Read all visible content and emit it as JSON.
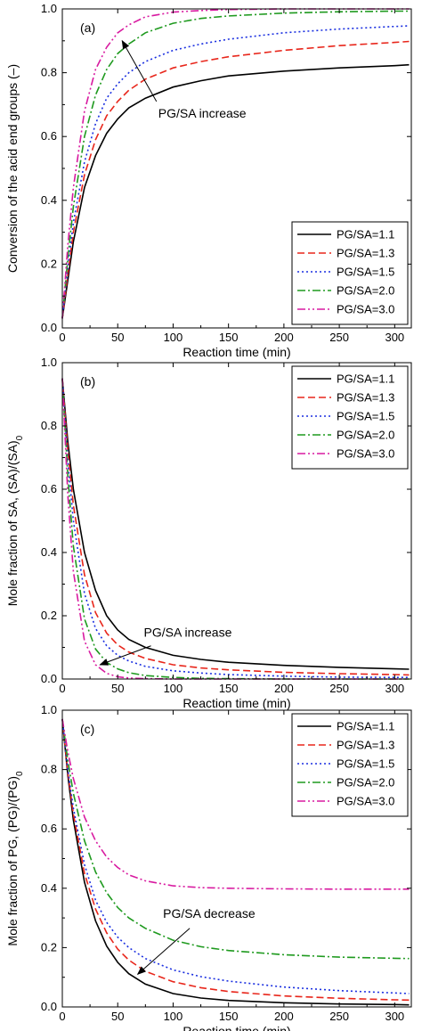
{
  "chart_data": [
    {
      "type": "line",
      "panel": "(a)",
      "xlabel": "Reaction time (min)",
      "ylabel": "Conversion of the acid end groups (–)",
      "xlim": [
        0,
        315
      ],
      "ylim": [
        0,
        1.0
      ],
      "xticks": [
        "0",
        "50",
        "100",
        "150",
        "200",
        "250",
        "300"
      ],
      "yticks": [
        "0.0",
        "0.2",
        "0.4",
        "0.6",
        "0.8",
        "1.0"
      ],
      "grid": false,
      "legend_position": "bottom-right",
      "annotation": {
        "text": "PG/SA increase",
        "arrow_from": [
          85,
          0.71
        ],
        "arrow_to": [
          54,
          0.9
        ]
      },
      "series": [
        {
          "name": "PG/SA=1.1",
          "color": "#000000",
          "dash": "solid",
          "x": [
            0,
            5,
            10,
            20,
            30,
            40,
            50,
            60,
            75,
            100,
            125,
            150,
            200,
            250,
            300,
            313
          ],
          "y": [
            0.03,
            0.15,
            0.27,
            0.44,
            0.54,
            0.61,
            0.655,
            0.69,
            0.72,
            0.755,
            0.775,
            0.79,
            0.805,
            0.815,
            0.822,
            0.825
          ]
        },
        {
          "name": "PG/SA=1.3",
          "color": "#e8261b",
          "dash": "dashed",
          "x": [
            0,
            5,
            10,
            20,
            30,
            40,
            50,
            60,
            75,
            100,
            125,
            150,
            200,
            250,
            300,
            313
          ],
          "y": [
            0.03,
            0.17,
            0.3,
            0.48,
            0.59,
            0.665,
            0.71,
            0.745,
            0.78,
            0.815,
            0.835,
            0.85,
            0.87,
            0.885,
            0.895,
            0.898
          ]
        },
        {
          "name": "PG/SA=1.5",
          "color": "#1a2fe0",
          "dash": "dotted",
          "x": [
            0,
            5,
            10,
            20,
            30,
            40,
            50,
            60,
            75,
            100,
            125,
            150,
            200,
            250,
            300,
            313
          ],
          "y": [
            0.03,
            0.19,
            0.33,
            0.52,
            0.64,
            0.72,
            0.765,
            0.8,
            0.835,
            0.87,
            0.89,
            0.905,
            0.925,
            0.937,
            0.945,
            0.947
          ]
        },
        {
          "name": "PG/SA=2.0",
          "color": "#1f9a1f",
          "dash": "dashdot",
          "x": [
            0,
            5,
            10,
            20,
            30,
            40,
            50,
            60,
            75,
            100,
            125,
            150,
            200,
            250,
            300,
            313
          ],
          "y": [
            0.03,
            0.22,
            0.38,
            0.6,
            0.73,
            0.81,
            0.86,
            0.89,
            0.925,
            0.955,
            0.97,
            0.978,
            0.987,
            0.991,
            0.993,
            0.993
          ]
        },
        {
          "name": "PG/SA=3.0",
          "color": "#d81aa0",
          "dash": "dashdotdot",
          "x": [
            0,
            5,
            10,
            20,
            30,
            40,
            50,
            60,
            75,
            100,
            125,
            150,
            200,
            250,
            300,
            313
          ],
          "y": [
            0.03,
            0.26,
            0.44,
            0.68,
            0.81,
            0.88,
            0.925,
            0.95,
            0.975,
            0.99,
            0.995,
            0.998,
            1.0,
            1.0,
            1.0,
            1.0
          ]
        }
      ]
    },
    {
      "type": "line",
      "panel": "(b)",
      "xlabel": "Reaction time (min)",
      "ylabel": "Mole fraction of SA, (SA)/(SA)",
      "ylabel_sub": "0",
      "xlim": [
        0,
        315
      ],
      "ylim": [
        0,
        1.0
      ],
      "xticks": [
        "0",
        "50",
        "100",
        "150",
        "200",
        "250",
        "300"
      ],
      "yticks": [
        "0.0",
        "0.2",
        "0.4",
        "0.6",
        "0.8",
        "1.0"
      ],
      "grid": false,
      "legend_position": "top-right",
      "annotation": {
        "text": "PG/SA increase",
        "arrow_from": [
          80,
          0.105
        ],
        "arrow_to": [
          34,
          0.045
        ]
      },
      "series": [
        {
          "name": "PG/SA=1.1",
          "color": "#000000",
          "dash": "solid",
          "x": [
            0,
            5,
            10,
            20,
            30,
            40,
            50,
            60,
            75,
            100,
            125,
            150,
            200,
            250,
            300,
            313
          ],
          "y": [
            0.95,
            0.75,
            0.6,
            0.4,
            0.28,
            0.2,
            0.155,
            0.125,
            0.1,
            0.075,
            0.062,
            0.053,
            0.043,
            0.037,
            0.032,
            0.031
          ]
        },
        {
          "name": "PG/SA=1.3",
          "color": "#e8261b",
          "dash": "dashed",
          "x": [
            0,
            5,
            10,
            20,
            30,
            40,
            50,
            60,
            75,
            100,
            125,
            150,
            200,
            250,
            300,
            313
          ],
          "y": [
            0.95,
            0.72,
            0.55,
            0.33,
            0.21,
            0.145,
            0.108,
            0.085,
            0.065,
            0.045,
            0.035,
            0.029,
            0.021,
            0.017,
            0.014,
            0.013
          ]
        },
        {
          "name": "PG/SA=1.5",
          "color": "#1a2fe0",
          "dash": "dotted",
          "x": [
            0,
            5,
            10,
            20,
            30,
            40,
            50,
            60,
            75,
            100,
            125,
            150,
            200,
            250,
            300,
            313
          ],
          "y": [
            0.95,
            0.69,
            0.5,
            0.27,
            0.16,
            0.105,
            0.075,
            0.057,
            0.04,
            0.026,
            0.019,
            0.014,
            0.009,
            0.006,
            0.005,
            0.005
          ]
        },
        {
          "name": "PG/SA=2.0",
          "color": "#1f9a1f",
          "dash": "dashdot",
          "x": [
            0,
            5,
            10,
            20,
            30,
            40,
            50,
            60,
            75,
            100,
            125,
            150,
            200,
            250,
            300,
            313
          ],
          "y": [
            0.95,
            0.64,
            0.42,
            0.19,
            0.095,
            0.052,
            0.032,
            0.02,
            0.011,
            0.005,
            0.002,
            0.001,
            0.0,
            0.0,
            0.0,
            0.0
          ]
        },
        {
          "name": "PG/SA=3.0",
          "color": "#d81aa0",
          "dash": "dashdotdot",
          "x": [
            0,
            5,
            10,
            20,
            30,
            40,
            50,
            60,
            75,
            100,
            125,
            150,
            200,
            250,
            300,
            313
          ],
          "y": [
            0.95,
            0.58,
            0.34,
            0.12,
            0.045,
            0.018,
            0.007,
            0.003,
            0.001,
            0.0,
            0.0,
            0.0,
            0.0,
            0.0,
            0.0,
            0.0
          ]
        }
      ]
    },
    {
      "type": "line",
      "panel": "(c)",
      "xlabel": "Reaction time (min)",
      "ylabel": "Mole fraction of PG, (PG)/(PG)",
      "ylabel_sub": "0",
      "xlim": [
        0,
        315
      ],
      "ylim": [
        0,
        1.0
      ],
      "xticks": [
        "0",
        "50",
        "100",
        "150",
        "200",
        "250",
        "300"
      ],
      "yticks": [
        "0.0",
        "0.2",
        "0.4",
        "0.6",
        "0.8",
        "1.0"
      ],
      "grid": false,
      "legend_position": "top-right",
      "annotation": {
        "text": "PG/SA decrease",
        "arrow_from": [
          115,
          0.265
        ],
        "arrow_to": [
          68,
          0.11
        ]
      },
      "series": [
        {
          "name": "PG/SA=1.1",
          "color": "#000000",
          "dash": "solid",
          "x": [
            0,
            5,
            10,
            20,
            30,
            40,
            50,
            60,
            75,
            100,
            125,
            150,
            200,
            250,
            300,
            313
          ],
          "y": [
            0.97,
            0.78,
            0.63,
            0.42,
            0.29,
            0.205,
            0.15,
            0.112,
            0.077,
            0.045,
            0.03,
            0.022,
            0.014,
            0.01,
            0.008,
            0.007
          ]
        },
        {
          "name": "PG/SA=1.3",
          "color": "#e8261b",
          "dash": "dashed",
          "x": [
            0,
            5,
            10,
            20,
            30,
            40,
            50,
            60,
            75,
            100,
            125,
            150,
            200,
            250,
            300,
            313
          ],
          "y": [
            0.97,
            0.79,
            0.65,
            0.45,
            0.33,
            0.25,
            0.195,
            0.158,
            0.12,
            0.085,
            0.065,
            0.052,
            0.037,
            0.029,
            0.024,
            0.023
          ]
        },
        {
          "name": "PG/SA=1.5",
          "color": "#1a2fe0",
          "dash": "dotted",
          "x": [
            0,
            5,
            10,
            20,
            30,
            40,
            50,
            60,
            75,
            100,
            125,
            150,
            200,
            250,
            300,
            313
          ],
          "y": [
            0.97,
            0.8,
            0.67,
            0.48,
            0.36,
            0.285,
            0.235,
            0.2,
            0.163,
            0.125,
            0.102,
            0.087,
            0.067,
            0.055,
            0.047,
            0.045
          ]
        },
        {
          "name": "PG/SA=2.0",
          "color": "#1f9a1f",
          "dash": "dashdot",
          "x": [
            0,
            5,
            10,
            20,
            30,
            40,
            50,
            60,
            75,
            100,
            125,
            150,
            200,
            250,
            300,
            313
          ],
          "y": [
            0.97,
            0.83,
            0.72,
            0.56,
            0.455,
            0.385,
            0.335,
            0.3,
            0.265,
            0.225,
            0.203,
            0.19,
            0.176,
            0.168,
            0.164,
            0.163
          ]
        },
        {
          "name": "PG/SA=3.0",
          "color": "#d81aa0",
          "dash": "dashdotdot",
          "x": [
            0,
            5,
            10,
            20,
            30,
            40,
            50,
            60,
            75,
            100,
            125,
            150,
            200,
            250,
            300,
            313
          ],
          "y": [
            0.97,
            0.86,
            0.77,
            0.64,
            0.56,
            0.505,
            0.47,
            0.445,
            0.425,
            0.408,
            0.402,
            0.4,
            0.398,
            0.397,
            0.397,
            0.397
          ]
        }
      ]
    }
  ]
}
